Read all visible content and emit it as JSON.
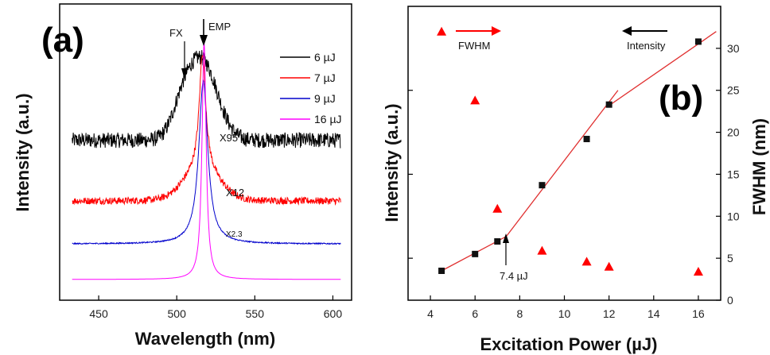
{
  "chart_data": [
    {
      "panel": "(a)",
      "type": "line",
      "xlabel": "Wavelength (nm)",
      "ylabel": "Intensity (a.u.)",
      "xlim": [
        425,
        612
      ],
      "x_ticks": [
        450,
        500,
        550,
        600
      ],
      "x_range": [
        433,
        605
      ],
      "legend_position": "top-right",
      "series": [
        {
          "name": "6 µJ",
          "color": "#000000",
          "offset": 0.54,
          "multiplier_label": "X95",
          "peaks": [
            {
              "center": 516,
              "width": 14,
              "height": 0.27,
              "shape": "gauss"
            },
            {
              "center": 503,
              "width": 9,
              "height": 0.07,
              "shape": "gauss"
            }
          ],
          "noise": 0.026
        },
        {
          "name": "7 µJ",
          "color": "#ff0000",
          "offset": 0.335,
          "multiplier_label": "X12",
          "peaks": [
            {
              "center": 516,
              "width": 16,
              "height": 0.1,
              "shape": "gauss"
            },
            {
              "center": 516.5,
              "width": 2.5,
              "height": 0.4,
              "shape": "lorentz"
            }
          ],
          "noise": 0.012
        },
        {
          "name": "9 µJ",
          "color": "#0000cc",
          "offset": 0.19,
          "multiplier_label": "X2.3",
          "peaks": [
            {
              "center": 517,
              "width": 3.5,
              "height": 0.55,
              "shape": "lorentz"
            }
          ],
          "noise": 0.002
        },
        {
          "name": "16 µJ",
          "color": "#ff00ff",
          "offset": 0.07,
          "multiplier_label": "",
          "peaks": [
            {
              "center": 517.5,
              "width": 1.6,
              "height": 0.8,
              "shape": "lorentz"
            }
          ],
          "noise": 0.0
        }
      ],
      "annotations": [
        "FX",
        "EMP"
      ]
    },
    {
      "panel": "(b)",
      "type": "scatter",
      "xlabel": "Excitation Power (µJ)",
      "ylabel_left": "Intensity (a.u.)",
      "ylabel_right": "FWHM (nm)",
      "xlim": [
        3,
        17
      ],
      "x_ticks": [
        4,
        6,
        8,
        10,
        12,
        14,
        16
      ],
      "y_right_lim": [
        0,
        35
      ],
      "y_right_ticks": [
        0,
        5,
        10,
        15,
        20,
        25,
        30
      ],
      "series": [
        {
          "name": "Intensity",
          "marker": "square",
          "color": "#111111",
          "x": [
            4.5,
            6,
            7,
            9,
            11,
            12,
            16
          ],
          "y_display": [
            3.5,
            5.5,
            7.0,
            13.7,
            19.2,
            23.3,
            30.8
          ]
        },
        {
          "name": "FWHM",
          "marker": "triangle",
          "color": "#ff0000",
          "x": [
            4.5,
            6,
            7,
            9,
            11,
            12,
            16
          ],
          "y": [
            32.0,
            23.8,
            10.9,
            5.9,
            4.6,
            4.0,
            3.4
          ]
        }
      ],
      "fit_lines": [
        {
          "x": [
            4.5,
            7.4
          ],
          "y_display": [
            3.5,
            7.6
          ]
        },
        {
          "x": [
            7.4,
            12.4
          ],
          "y_display": [
            7.6,
            25.0
          ]
        },
        {
          "x": [
            11.9,
            16.8
          ],
          "y_display": [
            23.0,
            32.0
          ]
        }
      ],
      "threshold_label": "7.4 µJ",
      "legend_labels": {
        "fwhm": "FWHM",
        "intensity": "Intensity"
      }
    }
  ]
}
